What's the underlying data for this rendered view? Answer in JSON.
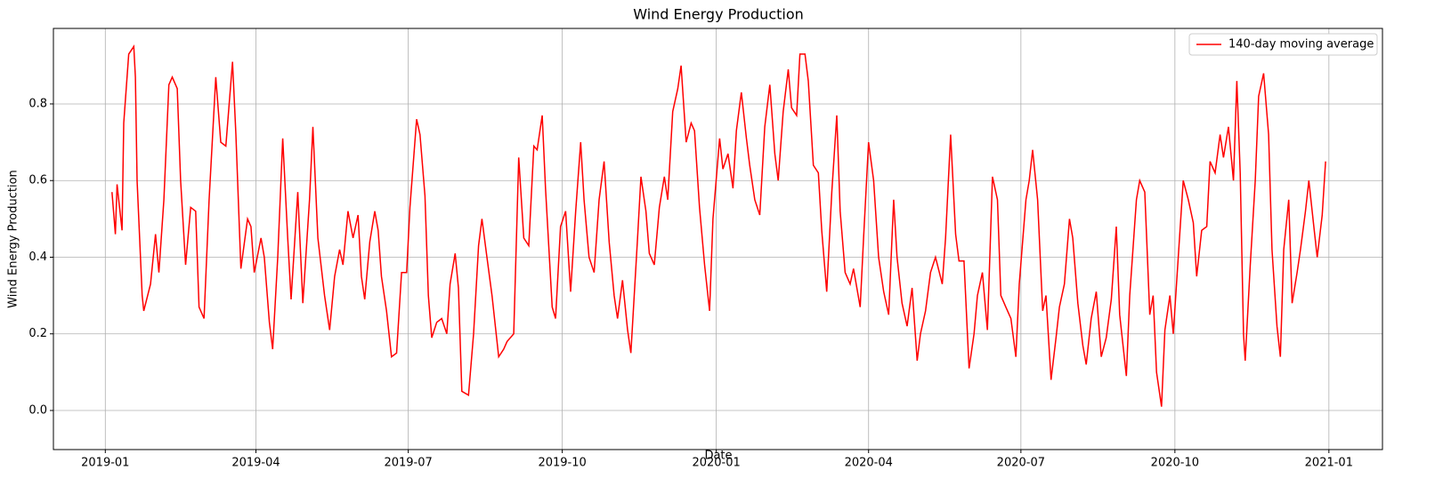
{
  "chart_data": {
    "type": "line",
    "title": "Wind Energy Production",
    "xlabel": "Date",
    "ylabel": "Wind Energy Production",
    "grid": true,
    "legend": "upper right",
    "xlim": [
      -31,
      763
    ],
    "ylim": [
      -0.102,
      0.997
    ],
    "xticks": [
      {
        "value": 0,
        "label": "2019-01"
      },
      {
        "value": 90,
        "label": "2019-04"
      },
      {
        "value": 181,
        "label": "2019-07"
      },
      {
        "value": 273,
        "label": "2019-10"
      },
      {
        "value": 365,
        "label": "2020-01"
      },
      {
        "value": 456,
        "label": "2020-04"
      },
      {
        "value": 547,
        "label": "2020-07"
      },
      {
        "value": 639,
        "label": "2020-10"
      },
      {
        "value": 731,
        "label": "2021-01"
      }
    ],
    "yticks": [
      {
        "value": 0,
        "label": "0.0"
      },
      {
        "value": 0.2,
        "label": "0.2"
      },
      {
        "value": 0.4,
        "label": "0.4"
      },
      {
        "value": 0.6,
        "label": "0.6"
      },
      {
        "value": 0.8,
        "label": "0.8"
      }
    ],
    "series": [
      {
        "name": "140-day moving average",
        "color": "#ff0000",
        "x": [
          4,
          6,
          7,
          10,
          11,
          14,
          17,
          18,
          19,
          22,
          23,
          27,
          30,
          32,
          35,
          38,
          40,
          43,
          45,
          48,
          51,
          54,
          56,
          59,
          62,
          66,
          69,
          72,
          76,
          78,
          81,
          85,
          87,
          89,
          93,
          95,
          98,
          100,
          103,
          106,
          109,
          111,
          115,
          118,
          122,
          124,
          127,
          131,
          134,
          137,
          140,
          142,
          145,
          148,
          151,
          153,
          155,
          158,
          161,
          163,
          165,
          168,
          171,
          174,
          177,
          180,
          182,
          186,
          188,
          191,
          193,
          195,
          198,
          201,
          204,
          206,
          209,
          211,
          213,
          217,
          220,
          223,
          225,
          228,
          231,
          235,
          238,
          240,
          244,
          247,
          250,
          253,
          256,
          258,
          261,
          263,
          267,
          269,
          272,
          275,
          278,
          281,
          284,
          286,
          289,
          292,
          295,
          298,
          301,
          304,
          306,
          309,
          312,
          314,
          318,
          320,
          323,
          325,
          328,
          331,
          334,
          336,
          339,
          342,
          344,
          347,
          350,
          352,
          355,
          358,
          361,
          363,
          367,
          369,
          372,
          375,
          377,
          380,
          383,
          385,
          388,
          391,
          394,
          397,
          400,
          402,
          405,
          408,
          410,
          413,
          415,
          418,
          420,
          423,
          426,
          428,
          431,
          434,
          437,
          439,
          442,
          445,
          447,
          451,
          453,
          456,
          459,
          462,
          465,
          468,
          471,
          473,
          476,
          479,
          482,
          485,
          487,
          490,
          493,
          496,
          500,
          502,
          505,
          508,
          510,
          513,
          516,
          519,
          521,
          524,
          527,
          530,
          533,
          535,
          538,
          541,
          544,
          546,
          550,
          552,
          554,
          557,
          560,
          562,
          565,
          568,
          570,
          573,
          576,
          578,
          581,
          584,
          586,
          589,
          592,
          595,
          598,
          601,
          604,
          606,
          610,
          612,
          616,
          618,
          621,
          624,
          626,
          628,
          631,
          633,
          636,
          638,
          641,
          644,
          647,
          650,
          652,
          655,
          658,
          660,
          663,
          666,
          668,
          671,
          674,
          676,
          678,
          680,
          681,
          684,
          687,
          689,
          692,
          695,
          697,
          700,
          702,
          704,
          707,
          709,
          712,
          714,
          717,
          719,
          722,
          724,
          727,
          729
        ],
        "values": [
          0.57,
          0.46,
          0.59,
          0.47,
          0.75,
          0.93,
          0.95,
          0.87,
          0.6,
          0.3,
          0.26,
          0.33,
          0.46,
          0.36,
          0.55,
          0.85,
          0.87,
          0.84,
          0.6,
          0.38,
          0.53,
          0.52,
          0.27,
          0.24,
          0.55,
          0.87,
          0.7,
          0.69,
          0.91,
          0.72,
          0.37,
          0.5,
          0.48,
          0.36,
          0.45,
          0.4,
          0.23,
          0.16,
          0.4,
          0.71,
          0.45,
          0.29,
          0.57,
          0.28,
          0.55,
          0.74,
          0.45,
          0.3,
          0.21,
          0.35,
          0.42,
          0.38,
          0.52,
          0.45,
          0.51,
          0.35,
          0.29,
          0.44,
          0.52,
          0.47,
          0.35,
          0.26,
          0.14,
          0.15,
          0.36,
          0.36,
          0.53,
          0.76,
          0.72,
          0.56,
          0.3,
          0.19,
          0.23,
          0.24,
          0.2,
          0.33,
          0.41,
          0.32,
          0.05,
          0.04,
          0.2,
          0.43,
          0.5,
          0.4,
          0.3,
          0.14,
          0.16,
          0.18,
          0.2,
          0.66,
          0.45,
          0.43,
          0.69,
          0.68,
          0.77,
          0.58,
          0.27,
          0.24,
          0.48,
          0.52,
          0.31,
          0.52,
          0.7,
          0.55,
          0.4,
          0.36,
          0.55,
          0.65,
          0.44,
          0.3,
          0.24,
          0.34,
          0.21,
          0.15,
          0.45,
          0.61,
          0.52,
          0.41,
          0.38,
          0.53,
          0.61,
          0.55,
          0.78,
          0.84,
          0.9,
          0.7,
          0.75,
          0.73,
          0.53,
          0.38,
          0.26,
          0.5,
          0.71,
          0.63,
          0.67,
          0.58,
          0.73,
          0.83,
          0.71,
          0.64,
          0.55,
          0.51,
          0.74,
          0.85,
          0.67,
          0.6,
          0.78,
          0.89,
          0.79,
          0.77,
          0.93,
          0.93,
          0.86,
          0.64,
          0.62,
          0.47,
          0.31,
          0.57,
          0.77,
          0.52,
          0.36,
          0.33,
          0.37,
          0.27,
          0.45,
          0.7,
          0.6,
          0.4,
          0.31,
          0.25,
          0.55,
          0.4,
          0.28,
          0.22,
          0.32,
          0.13,
          0.2,
          0.26,
          0.36,
          0.4,
          0.33,
          0.45,
          0.72,
          0.46,
          0.39,
          0.39,
          0.11,
          0.2,
          0.3,
          0.36,
          0.21,
          0.61,
          0.55,
          0.3,
          0.27,
          0.24,
          0.14,
          0.33,
          0.55,
          0.6,
          0.68,
          0.55,
          0.26,
          0.3,
          0.08,
          0.19,
          0.27,
          0.33,
          0.5,
          0.45,
          0.28,
          0.17,
          0.12,
          0.24,
          0.31,
          0.14,
          0.19,
          0.29,
          0.48,
          0.25,
          0.09,
          0.3,
          0.55,
          0.6,
          0.57,
          0.25,
          0.3,
          0.1,
          0.01,
          0.21,
          0.3,
          0.2,
          0.4,
          0.6,
          0.55,
          0.49,
          0.35,
          0.47,
          0.48,
          0.65,
          0.62,
          0.72,
          0.66,
          0.74,
          0.6,
          0.86,
          0.62,
          0.2,
          0.13,
          0.38,
          0.6,
          0.82,
          0.88,
          0.72,
          0.42,
          0.22,
          0.14,
          0.42,
          0.55,
          0.28,
          0.36,
          0.42,
          0.52,
          0.6,
          0.48,
          0.4,
          0.51,
          0.65
        ]
      }
    ]
  }
}
